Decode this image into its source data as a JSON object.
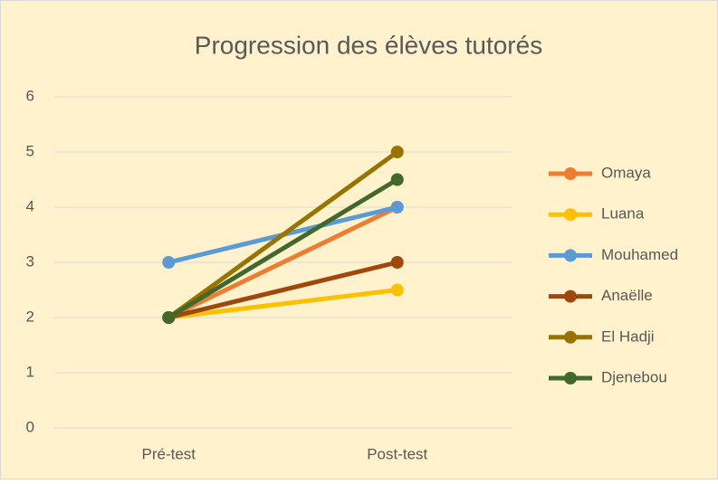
{
  "chart_data": {
    "type": "line",
    "title": "Progression des élèves tutorés",
    "categories": [
      "Pré-test",
      "Post-test"
    ],
    "series": [
      {
        "name": "Omaya",
        "color": "#ED7D31",
        "values": [
          2,
          4
        ]
      },
      {
        "name": "Luana",
        "color": "#FFC000",
        "values": [
          2,
          2.5
        ]
      },
      {
        "name": "Mouhamed",
        "color": "#5B9BD5",
        "values": [
          3,
          4
        ]
      },
      {
        "name": "Anaëlle",
        "color": "#9E480E",
        "values": [
          2,
          3
        ]
      },
      {
        "name": "El Hadji",
        "color": "#997300",
        "values": [
          2,
          5
        ]
      },
      {
        "name": "Djenebou",
        "color": "#43682B",
        "values": [
          2,
          4.5
        ]
      }
    ],
    "ylim": [
      0,
      6
    ],
    "yticks": [
      0,
      1,
      2,
      3,
      4,
      5,
      6
    ],
    "grid": true,
    "legend": "right"
  }
}
